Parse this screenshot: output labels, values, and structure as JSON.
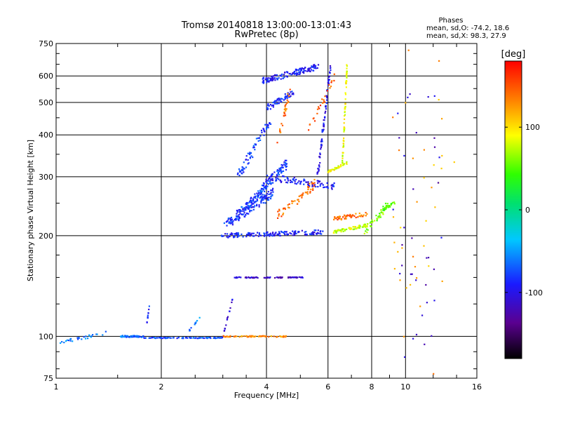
{
  "chart_data": {
    "type": "scatter",
    "title": "Tromsø 20140818 13:00:00-13:01:43",
    "subtitle": "RwPretec (8p)",
    "phase_box": {
      "heading": "Phases",
      "line1": "mean, sd,O: -74.2, 18.6",
      "line2": "mean, sd,X:  98.3, 27.9"
    },
    "xlabel": "Frequency [MHz]",
    "ylabel": "Stationary phase Virtual Height [km]",
    "xscale": "log",
    "yscale": "log",
    "xlim": [
      1,
      16
    ],
    "ylim": [
      75,
      750
    ],
    "x_ticks": [
      1,
      2,
      4,
      6,
      8,
      10,
      16
    ],
    "x_tick_labels": [
      "1",
      "2",
      "4",
      "6",
      "8",
      "10",
      "16"
    ],
    "y_ticks": [
      75,
      100,
      200,
      300,
      400,
      500,
      600,
      750
    ],
    "y_tick_labels": [
      "75",
      "100",
      "200",
      "300",
      "400",
      "500",
      "600",
      "750"
    ],
    "grid": true,
    "colorbar": {
      "label": "[deg]",
      "range": [
        -180,
        180
      ],
      "ticks": [
        100,
        0,
        -100
      ],
      "tick_labels": [
        "100",
        "0",
        "-100"
      ],
      "colormap": "rainbow"
    },
    "segments": [
      {
        "x": [
          1.0,
          1.4
        ],
        "y": [
          95,
          103
        ],
        "phase": -60,
        "n": 28,
        "spread": 0.012
      },
      {
        "x": [
          1.52,
          1.78
        ],
        "y": [
          100,
          100
        ],
        "phase": -65,
        "n": 55,
        "spread": 0.006
      },
      {
        "x": [
          1.78,
          3.0
        ],
        "y": [
          99,
          99
        ],
        "phase": -75,
        "n": 90,
        "spread": 0.003
      },
      {
        "x": [
          1.82,
          1.85
        ],
        "y": [
          110,
          125
        ],
        "phase": -85,
        "n": 10,
        "spread": 0.004
      },
      {
        "x": [
          2.4,
          2.6
        ],
        "y": [
          104,
          115
        ],
        "phase": -60,
        "n": 10,
        "spread": 0.004
      },
      {
        "x": [
          3.0,
          3.2
        ],
        "y": [
          100,
          130
        ],
        "phase": -100,
        "n": 16,
        "spread": 0.006
      },
      {
        "x": [
          3.0,
          4.6
        ],
        "y": [
          100,
          100
        ],
        "phase": 130,
        "n": 70,
        "spread": 0.004
      },
      {
        "x": [
          3.2,
          3.8
        ],
        "y": [
          150,
          150
        ],
        "phase": -110,
        "n": 30,
        "spread": 0.003
      },
      {
        "x": [
          3.9,
          5.1
        ],
        "y": [
          150,
          150
        ],
        "phase": -115,
        "n": 45,
        "spread": 0.003
      },
      {
        "x": [
          2.95,
          5.8
        ],
        "y": [
          200,
          205
        ],
        "phase": -90,
        "n": 150,
        "spread": 0.015
      },
      {
        "x": [
          3.05,
          4.2
        ],
        "y": [
          215,
          270
        ],
        "phase": -85,
        "n": 130,
        "spread": 0.03
      },
      {
        "x": [
          3.3,
          4.6
        ],
        "y": [
          230,
          330
        ],
        "phase": -80,
        "n": 150,
        "spread": 0.03
      },
      {
        "x": [
          4.0,
          6.3
        ],
        "y": [
          300,
          280
        ],
        "phase": -95,
        "n": 100,
        "spread": 0.025
      },
      {
        "x": [
          3.3,
          4.1
        ],
        "y": [
          300,
          440
        ],
        "phase": -82,
        "n": 70,
        "spread": 0.03
      },
      {
        "x": [
          3.9,
          5.6
        ],
        "y": [
          580,
          640
        ],
        "phase": -90,
        "n": 140,
        "spread": 0.02
      },
      {
        "x": [
          4.0,
          4.8
        ],
        "y": [
          480,
          540
        ],
        "phase": -88,
        "n": 60,
        "spread": 0.02
      },
      {
        "x": [
          5.6,
          6.1
        ],
        "y": [
          300,
          650
        ],
        "phase": -100,
        "n": 80,
        "spread": 0.012
      },
      {
        "x": [
          4.3,
          5.6
        ],
        "y": [
          230,
          290
        ],
        "phase": 140,
        "n": 55,
        "spread": 0.03
      },
      {
        "x": [
          4.3,
          4.7
        ],
        "y": [
          380,
          560
        ],
        "phase": 140,
        "n": 30,
        "spread": 0.02
      },
      {
        "x": [
          5.3,
          6.3
        ],
        "y": [
          420,
          600
        ],
        "phase": 150,
        "n": 25,
        "spread": 0.02
      },
      {
        "x": [
          6.0,
          6.8
        ],
        "y": [
          310,
          330
        ],
        "phase": 88,
        "n": 35,
        "spread": 0.008
      },
      {
        "x": [
          6.6,
          6.8
        ],
        "y": [
          330,
          650
        ],
        "phase": 85,
        "n": 70,
        "spread": 0.008
      },
      {
        "x": [
          6.2,
          7.8
        ],
        "y": [
          205,
          215
        ],
        "phase": 80,
        "n": 70,
        "spread": 0.01
      },
      {
        "x": [
          6.2,
          7.8
        ],
        "y": [
          225,
          232
        ],
        "phase": 140,
        "n": 50,
        "spread": 0.015
      },
      {
        "x": [
          7.6,
          9.0
        ],
        "y": [
          205,
          250
        ],
        "phase": 60,
        "n": 40,
        "spread": 0.025
      },
      {
        "x": [
          8.6,
          9.3
        ],
        "y": [
          240,
          250
        ],
        "phase": 50,
        "n": 25,
        "spread": 0.01
      },
      {
        "x": [
          9.5,
          13.5
        ],
        "y": [
          80,
          650
        ],
        "phase": 120,
        "n": 40,
        "spread": 0.2
      },
      {
        "x": [
          9.5,
          13.0
        ],
        "y": [
          80,
          650
        ],
        "phase": -110,
        "n": 35,
        "spread": 0.2
      }
    ]
  }
}
